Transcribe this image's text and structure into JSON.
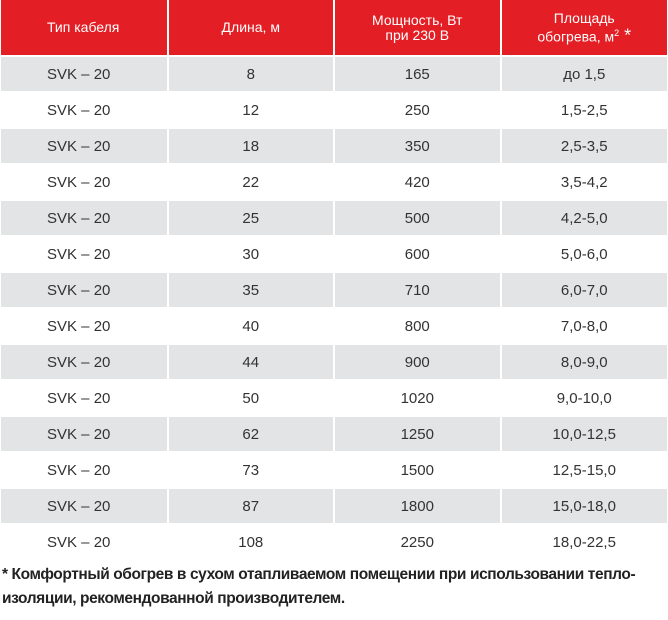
{
  "headers": {
    "type": "Тип кабеля",
    "length": "Длина, м",
    "power_line1": "Мощность, Вт",
    "power_line2": "при 230 В",
    "area_line1": "Площадь",
    "area_line2": "обогрева, м",
    "area_sup": "2",
    "area_star": " *"
  },
  "rows": [
    {
      "type": "SVK – 20",
      "length": "8",
      "power": "165",
      "area": "до 1,5"
    },
    {
      "type": "SVK – 20",
      "length": "12",
      "power": "250",
      "area": "1,5-2,5"
    },
    {
      "type": "SVK – 20",
      "length": "18",
      "power": "350",
      "area": "2,5-3,5"
    },
    {
      "type": "SVK – 20",
      "length": "22",
      "power": "420",
      "area": "3,5-4,2"
    },
    {
      "type": "SVK – 20",
      "length": "25",
      "power": "500",
      "area": "4,2-5,0"
    },
    {
      "type": "SVK – 20",
      "length": "30",
      "power": "600",
      "area": "5,0-6,0"
    },
    {
      "type": "SVK – 20",
      "length": "35",
      "power": "710",
      "area": "6,0-7,0"
    },
    {
      "type": "SVK – 20",
      "length": "40",
      "power": "800",
      "area": "7,0-8,0"
    },
    {
      "type": "SVK – 20",
      "length": "44",
      "power": "900",
      "area": "8,0-9,0"
    },
    {
      "type": "SVK – 20",
      "length": "50",
      "power": "1020",
      "area": "9,0-10,0"
    },
    {
      "type": "SVK – 20",
      "length": "62",
      "power": "1250",
      "area": "10,0-12,5"
    },
    {
      "type": "SVK – 20",
      "length": "73",
      "power": "1500",
      "area": "12,5-15,0"
    },
    {
      "type": "SVK – 20",
      "length": "87",
      "power": "1800",
      "area": "15,0-18,0"
    },
    {
      "type": "SVK – 20",
      "length": "108",
      "power": "2250",
      "area": "18,0-22,5"
    }
  ],
  "footnote_line1": "* Комфортный обогрев в сухом отапливаемом помещении при использовании тепло-",
  "footnote_line2": "изоляции, рекомендованной производителем.",
  "colors": {
    "header": "#e31e24",
    "alt_row": "#e3e4e6"
  }
}
